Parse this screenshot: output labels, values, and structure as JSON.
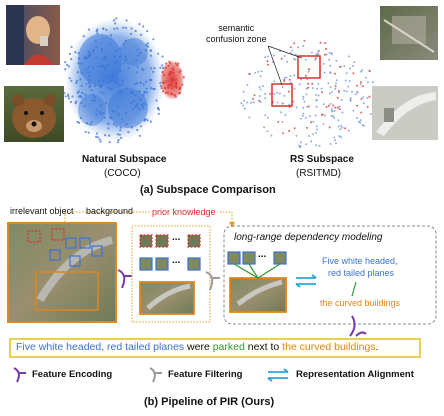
{
  "panel_a": {
    "annotation": "semantic\nconfusion zone",
    "natural_title": "Natural Subspace",
    "natural_dataset": "(COCO)",
    "rs_title": "RS Subspace",
    "rs_dataset": "(RSITMD)",
    "caption": "(a) Subspace Comparison"
  },
  "panel_b": {
    "label_irrelevant": "irrelevant object",
    "label_background": "background",
    "label_prior": "prior knowledge",
    "dots": "...",
    "long_range_title": "long-range dependency modeling",
    "caption_planes_line1": "Five white headed,",
    "caption_planes_line2": "red tailed planes",
    "caption_buildings": "the curved buildings",
    "sentence_part1": "Five white headed, red tailed planes",
    "sentence_part2": " were ",
    "sentence_part3": "parked",
    "sentence_part4": " next to ",
    "sentence_part5": "the curved buildings",
    "sentence_part6": ".",
    "legend_encoding": "Feature Encoding",
    "legend_filtering": "Feature Filtering",
    "legend_alignment": "Representation Alignment",
    "caption": "(b) Pipeline of PIR (Ours)"
  },
  "colors": {
    "blue": "#3a73d6",
    "red": "#d9302a",
    "orange": "#e0861a",
    "green": "#2f9a3a",
    "purple": "#7a3aa8",
    "cyan": "#2aa5d8"
  }
}
